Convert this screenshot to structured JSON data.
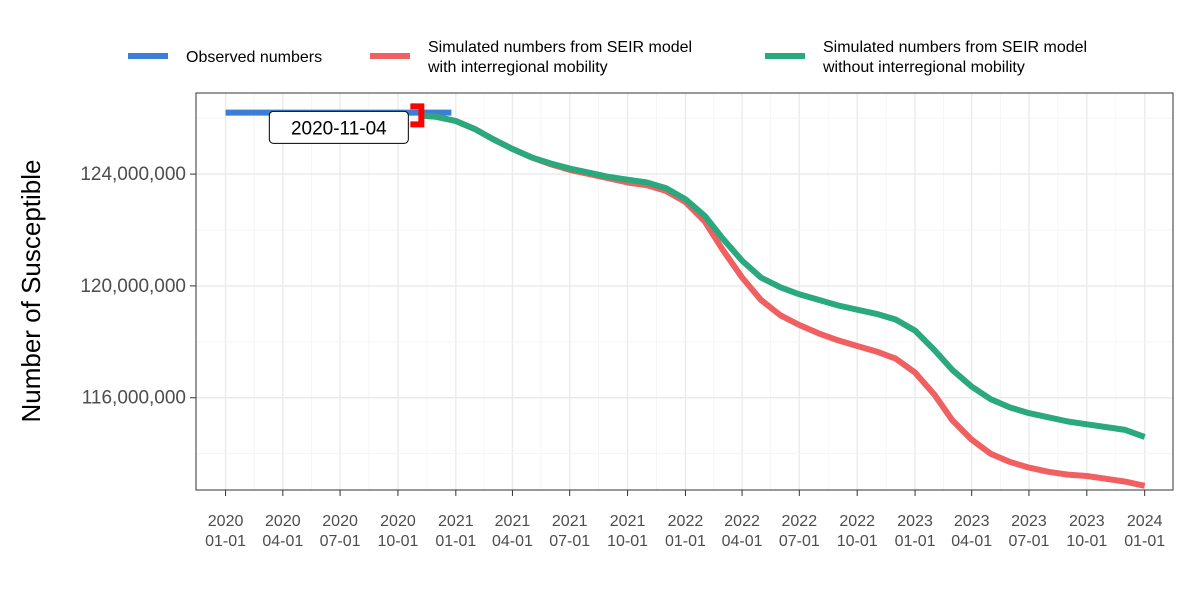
{
  "chart_data": {
    "type": "line",
    "title": "",
    "xlabel": "",
    "ylabel": "Number of Susceptible",
    "x_axis_type": "date",
    "xlim": [
      "2019-11-15",
      "2024-02-15"
    ],
    "ylim": [
      112700000,
      126900000
    ],
    "grid": true,
    "legend_position": "top",
    "x_ticks": [
      {
        "date": "2020-01-01",
        "line1": "2020",
        "line2": "01-01"
      },
      {
        "date": "2020-04-01",
        "line1": "2020",
        "line2": "04-01"
      },
      {
        "date": "2020-07-01",
        "line1": "2020",
        "line2": "07-01"
      },
      {
        "date": "2020-10-01",
        "line1": "2020",
        "line2": "10-01"
      },
      {
        "date": "2021-01-01",
        "line1": "2021",
        "line2": "01-01"
      },
      {
        "date": "2021-04-01",
        "line1": "2021",
        "line2": "04-01"
      },
      {
        "date": "2021-07-01",
        "line1": "2021",
        "line2": "07-01"
      },
      {
        "date": "2021-10-01",
        "line1": "2021",
        "line2": "10-01"
      },
      {
        "date": "2022-01-01",
        "line1": "2022",
        "line2": "01-01"
      },
      {
        "date": "2022-04-01",
        "line1": "2022",
        "line2": "04-01"
      },
      {
        "date": "2022-07-01",
        "line1": "2022",
        "line2": "07-01"
      },
      {
        "date": "2022-10-01",
        "line1": "2022",
        "line2": "10-01"
      },
      {
        "date": "2023-01-01",
        "line1": "2023",
        "line2": "01-01"
      },
      {
        "date": "2023-04-01",
        "line1": "2023",
        "line2": "04-01"
      },
      {
        "date": "2023-07-01",
        "line1": "2023",
        "line2": "07-01"
      },
      {
        "date": "2023-10-01",
        "line1": "2023",
        "line2": "10-01"
      },
      {
        "date": "2024-01-01",
        "line1": "2024",
        "line2": "01-01"
      }
    ],
    "y_ticks": [
      {
        "value": 116000000,
        "label": "116,000,000"
      },
      {
        "value": 120000000,
        "label": "120,000,000"
      },
      {
        "value": 124000000,
        "label": "124,000,000"
      }
    ],
    "series": [
      {
        "name_lines": [
          "Observed numbers"
        ],
        "color": "#3a7fd5",
        "points": [
          [
            "2020-01-01",
            126200000
          ],
          [
            "2020-11-04",
            126200000
          ],
          [
            "2020-12-25",
            126200000
          ]
        ]
      },
      {
        "name_lines": [
          "Simulated numbers from SEIR model",
          "with interregional mobility"
        ],
        "color": "#f06060",
        "points": [
          [
            "2020-11-04",
            126100000
          ],
          [
            "2020-12-01",
            126050000
          ],
          [
            "2021-01-01",
            125900000
          ],
          [
            "2021-02-01",
            125600000
          ],
          [
            "2021-03-01",
            125250000
          ],
          [
            "2021-04-01",
            124900000
          ],
          [
            "2021-05-01",
            124600000
          ],
          [
            "2021-06-01",
            124350000
          ],
          [
            "2021-07-01",
            124150000
          ],
          [
            "2021-08-01",
            124000000
          ],
          [
            "2021-09-01",
            123850000
          ],
          [
            "2021-10-01",
            123700000
          ],
          [
            "2021-11-01",
            123600000
          ],
          [
            "2021-12-01",
            123400000
          ],
          [
            "2022-01-01",
            123000000
          ],
          [
            "2022-02-01",
            122300000
          ],
          [
            "2022-03-01",
            121300000
          ],
          [
            "2022-04-01",
            120300000
          ],
          [
            "2022-05-01",
            119500000
          ],
          [
            "2022-06-01",
            118950000
          ],
          [
            "2022-07-01",
            118600000
          ],
          [
            "2022-08-01",
            118300000
          ],
          [
            "2022-09-01",
            118050000
          ],
          [
            "2022-10-01",
            117850000
          ],
          [
            "2022-11-01",
            117650000
          ],
          [
            "2022-12-01",
            117400000
          ],
          [
            "2023-01-01",
            116900000
          ],
          [
            "2023-02-01",
            116100000
          ],
          [
            "2023-03-01",
            115200000
          ],
          [
            "2023-04-01",
            114500000
          ],
          [
            "2023-05-01",
            114000000
          ],
          [
            "2023-06-01",
            113700000
          ],
          [
            "2023-07-01",
            113500000
          ],
          [
            "2023-08-01",
            113350000
          ],
          [
            "2023-09-01",
            113250000
          ],
          [
            "2023-10-01",
            113200000
          ],
          [
            "2023-11-01",
            113100000
          ],
          [
            "2023-12-01",
            113000000
          ],
          [
            "2024-01-01",
            112850000
          ]
        ]
      },
      {
        "name_lines": [
          "Simulated numbers from SEIR model",
          "without interregional mobility"
        ],
        "color": "#2aa87e",
        "points": [
          [
            "2020-11-04",
            126100000
          ],
          [
            "2020-12-01",
            126050000
          ],
          [
            "2021-01-01",
            125900000
          ],
          [
            "2021-02-01",
            125600000
          ],
          [
            "2021-03-01",
            125250000
          ],
          [
            "2021-04-01",
            124900000
          ],
          [
            "2021-05-01",
            124600000
          ],
          [
            "2021-06-01",
            124380000
          ],
          [
            "2021-07-01",
            124200000
          ],
          [
            "2021-08-01",
            124050000
          ],
          [
            "2021-09-01",
            123900000
          ],
          [
            "2021-10-01",
            123800000
          ],
          [
            "2021-11-01",
            123700000
          ],
          [
            "2021-12-01",
            123500000
          ],
          [
            "2022-01-01",
            123100000
          ],
          [
            "2022-02-01",
            122500000
          ],
          [
            "2022-03-01",
            121700000
          ],
          [
            "2022-04-01",
            120900000
          ],
          [
            "2022-05-01",
            120300000
          ],
          [
            "2022-06-01",
            119950000
          ],
          [
            "2022-07-01",
            119700000
          ],
          [
            "2022-08-01",
            119500000
          ],
          [
            "2022-09-01",
            119300000
          ],
          [
            "2022-10-01",
            119150000
          ],
          [
            "2022-11-01",
            119000000
          ],
          [
            "2022-12-01",
            118800000
          ],
          [
            "2023-01-01",
            118400000
          ],
          [
            "2023-02-01",
            117700000
          ],
          [
            "2023-03-01",
            117000000
          ],
          [
            "2023-04-01",
            116400000
          ],
          [
            "2023-05-01",
            115950000
          ],
          [
            "2023-06-01",
            115650000
          ],
          [
            "2023-07-01",
            115450000
          ],
          [
            "2023-08-01",
            115300000
          ],
          [
            "2023-09-01",
            115150000
          ],
          [
            "2023-10-01",
            115050000
          ],
          [
            "2023-11-01",
            114950000
          ],
          [
            "2023-12-01",
            114850000
          ],
          [
            "2024-01-01",
            114600000
          ]
        ]
      }
    ],
    "annotation": {
      "label": "2020-11-04",
      "date": "2020-11-04",
      "value": 126100000,
      "marker_color": "#ff0000"
    }
  }
}
